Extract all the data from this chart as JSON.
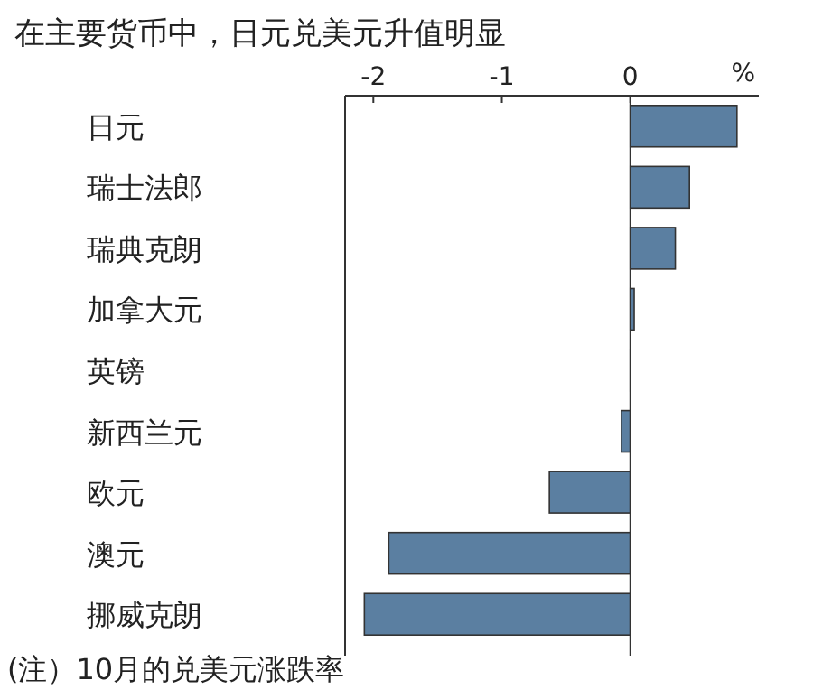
{
  "chart_data": {
    "type": "bar",
    "orientation": "horizontal",
    "title": "在主要货币中，日元兑美元升值明显",
    "categories": [
      "日元",
      "瑞士法郎",
      "瑞典克朗",
      "加拿大元",
      "英镑",
      "新西兰元",
      "欧元",
      "澳元",
      "挪威克朗"
    ],
    "values": [
      0.83,
      0.46,
      0.35,
      0.03,
      0,
      -0.07,
      -0.63,
      -1.88,
      -2.07
    ],
    "color": "#5b7fa1",
    "xlim": [
      -2.22,
      1.0
    ],
    "xticks": [
      -2,
      -1,
      0
    ],
    "xlabel": "%",
    "annotations": [
      "(注）10月的兑美元涨跌率"
    ]
  }
}
